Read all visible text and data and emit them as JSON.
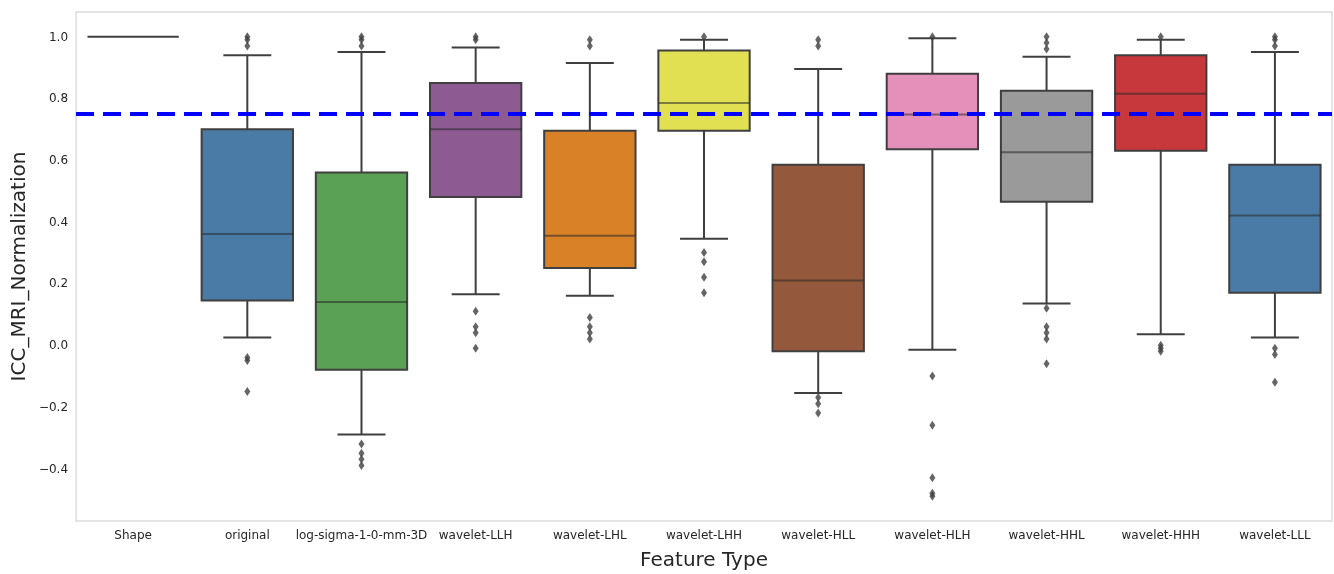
{
  "chart_data": {
    "type": "box",
    "xlabel": "Feature Type",
    "ylabel": "ICC_MRI_Normalization",
    "categories": [
      "Shape",
      "original",
      "log-sigma-1-0-mm-3D",
      "wavelet-LLH",
      "wavelet-LHL",
      "wavelet-LHH",
      "wavelet-HLL",
      "wavelet-HLH",
      "wavelet-HHL",
      "wavelet-HHH",
      "wavelet-LLL"
    ],
    "colors": [
      null,
      "#4a7ba6",
      "#5aa155",
      "#8d5a92",
      "#d88127",
      "#e0e052",
      "#94593c",
      "#e490ba",
      "#9a9a9a",
      "#c6383c",
      "#4a7ba6"
    ],
    "boxes": [
      {
        "low": 1.0,
        "q1": 1.0,
        "median": 1.0,
        "q3": 1.0,
        "high": 1.0
      },
      {
        "low": 0.025,
        "q1": 0.145,
        "median": 0.36,
        "q3": 0.7,
        "high": 0.94,
        "outliers": [
          0.97,
          0.99,
          1.0,
          -0.04,
          -0.05,
          -0.15
        ]
      },
      {
        "low": -0.29,
        "q1": -0.08,
        "median": 0.14,
        "q3": 0.56,
        "high": 0.95,
        "outliers": [
          0.97,
          0.99,
          1.0,
          -0.32,
          -0.35,
          -0.37,
          -0.39
        ]
      },
      {
        "low": 0.165,
        "q1": 0.48,
        "median": 0.7,
        "q3": 0.85,
        "high": 0.965,
        "outliers": [
          0.99,
          1.0,
          0.11,
          0.06,
          0.04,
          -0.01
        ]
      },
      {
        "low": 0.16,
        "q1": 0.25,
        "median": 0.355,
        "q3": 0.695,
        "high": 0.915,
        "outliers": [
          0.97,
          0.99,
          0.09,
          0.06,
          0.04,
          0.02
        ]
      },
      {
        "low": 0.345,
        "q1": 0.695,
        "median": 0.785,
        "q3": 0.955,
        "high": 0.99,
        "outliers": [
          1.0,
          0.3,
          0.27,
          0.22,
          0.17
        ]
      },
      {
        "low": -0.155,
        "q1": -0.02,
        "median": 0.21,
        "q3": 0.585,
        "high": 0.895,
        "outliers": [
          0.97,
          0.99,
          -0.17,
          -0.19,
          -0.22
        ]
      },
      {
        "low": -0.015,
        "q1": 0.635,
        "median": 0.748,
        "q3": 0.88,
        "high": 0.995,
        "outliers": [
          1.0,
          -0.1,
          -0.26,
          -0.43,
          -0.48,
          -0.49
        ]
      },
      {
        "low": 0.135,
        "q1": 0.465,
        "median": 0.625,
        "q3": 0.825,
        "high": 0.935,
        "outliers": [
          0.96,
          0.98,
          1.0,
          0.12,
          0.06,
          0.04,
          0.02,
          -0.06
        ]
      },
      {
        "low": 0.035,
        "q1": 0.63,
        "median": 0.815,
        "q3": 0.94,
        "high": 0.99,
        "outliers": [
          1.0,
          0.0,
          -0.01,
          -0.02
        ]
      },
      {
        "low": 0.025,
        "q1": 0.17,
        "median": 0.42,
        "q3": 0.585,
        "high": 0.95,
        "outliers": [
          0.97,
          0.99,
          1.0,
          -0.01,
          -0.03,
          -0.12
        ]
      }
    ],
    "ylim": [
      -0.57,
      1.08
    ],
    "yticks": [
      {
        "value": -0.4,
        "label": "−0.4"
      },
      {
        "value": -0.2,
        "label": "−0.2"
      },
      {
        "value": 0,
        "label": "0.0"
      },
      {
        "value": 0.2,
        "label": "0.2"
      },
      {
        "value": 0.4,
        "label": "0.4"
      },
      {
        "value": 0.6,
        "label": "0.6"
      },
      {
        "value": 0.8,
        "label": "0.8"
      },
      {
        "value": 1,
        "label": "1.0"
      }
    ],
    "ref_lines": [
      {
        "axis": "y",
        "value": 0.75,
        "color": "#0000ff",
        "line_style": "dashed"
      }
    ],
    "grid": false,
    "legend": false
  }
}
